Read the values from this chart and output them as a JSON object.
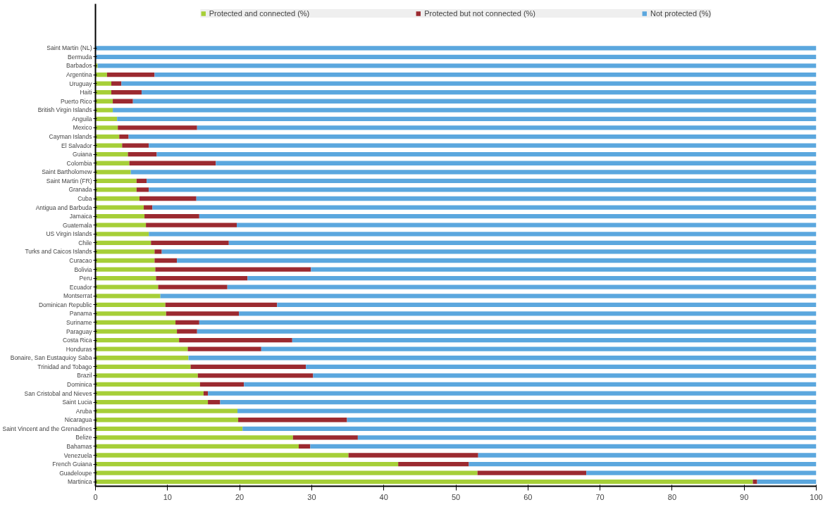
{
  "chart_data": {
    "type": "bar",
    "orientation": "horizontal",
    "stacked": true,
    "legend": "top",
    "grid": false,
    "xlim": [
      0,
      100
    ],
    "xticks": [
      0,
      10,
      20,
      30,
      40,
      50,
      60,
      70,
      80,
      90,
      100
    ],
    "categories": [
      "Saint Martin (NL)",
      "Bermuda",
      "Barbados",
      "Argentina",
      "Uruguay",
      "Haiti",
      "Puerto Rico",
      "British Virgin Islands",
      "Anguila",
      "Mexico",
      "Cayman Islands",
      "El Salvador",
      "Guiana",
      "Colombia",
      "Saint Bartholomew",
      "Saint Martin (FR)",
      "Granada",
      "Cuba",
      "Antigua and Barbuda",
      "Jamaica",
      "Guatemala",
      "US Virgin Islands",
      "Chile",
      "Turks and Caicos Islands",
      "Curacao",
      "Bolivia",
      "Peru",
      "Ecuador",
      "Montserrat",
      "Dominican Republic",
      "Panama",
      "Suriname",
      "Paraguay",
      "Costa Rica",
      "Honduras",
      "Bonaire, San Eustaquioy Saba",
      "Trinidad and Tobago",
      "Brazil",
      "Dominica",
      "San Cristobal and Nieves",
      "Saint Lucia",
      "Aruba",
      "Nicaragua",
      "Saint Vincent and the Grenadines",
      "Belize",
      "Bahamas",
      "Venezuela",
      "French Guiana",
      "Guadeloupe",
      "Martinica"
    ],
    "series": [
      {
        "name": "Protected and connected (%)",
        "color": "#a6cf38",
        "values": [
          0,
          0,
          0.3,
          1.6,
          2.2,
          2.2,
          2.4,
          2.4,
          3.0,
          3.1,
          3.3,
          3.7,
          4.5,
          4.7,
          4.9,
          5.7,
          5.7,
          6.1,
          6.7,
          6.8,
          7.0,
          7.4,
          7.7,
          8.2,
          8.2,
          8.3,
          8.4,
          8.7,
          9.0,
          9.7,
          9.8,
          11.1,
          11.3,
          11.6,
          12.8,
          12.9,
          13.2,
          14.2,
          14.5,
          15.0,
          15.6,
          19.7,
          19.8,
          20.4,
          27.4,
          28.2,
          35.1,
          42.0,
          53.0,
          91.2
        ]
      },
      {
        "name": "Protected but not connected (%)",
        "color": "#9b2a30",
        "values": [
          0,
          0,
          0,
          6.6,
          1.4,
          4.2,
          2.8,
          0,
          0,
          11.0,
          1.3,
          3.7,
          4.0,
          12.0,
          0,
          1.4,
          1.7,
          7.9,
          1.2,
          7.6,
          12.6,
          0,
          10.8,
          1.0,
          3.1,
          21.6,
          12.7,
          9.6,
          0,
          15.5,
          10.1,
          3.3,
          2.8,
          15.7,
          10.2,
          0,
          16.0,
          16.0,
          6.1,
          0.6,
          1.7,
          0,
          15.1,
          0,
          9.0,
          1.6,
          18.0,
          9.8,
          15.1,
          0.6
        ]
      },
      {
        "name": "Not protected (%)",
        "color": "#5ba7de",
        "values": [
          100,
          100,
          99.7,
          91.8,
          96.4,
          93.6,
          94.8,
          97.6,
          97.0,
          85.9,
          95.4,
          92.6,
          91.5,
          83.3,
          95.1,
          92.9,
          92.6,
          86.0,
          92.1,
          85.6,
          80.4,
          92.6,
          81.5,
          90.8,
          88.7,
          70.1,
          78.9,
          81.7,
          91.0,
          74.8,
          80.1,
          85.6,
          85.9,
          72.7,
          77.0,
          87.1,
          70.8,
          69.8,
          79.4,
          84.4,
          82.7,
          80.3,
          65.1,
          79.6,
          63.6,
          70.2,
          46.9,
          48.2,
          31.9,
          8.2
        ]
      }
    ]
  }
}
